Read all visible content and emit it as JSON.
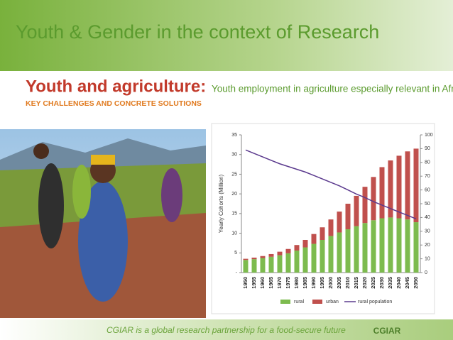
{
  "slide_title": "Youth & Gender in the context of Research",
  "cover": {
    "title": "Youth and agriculture:",
    "subtitle": "KEY CHALLENGES AND CONCRETE SOLUTIONS"
  },
  "description": "Youth employment in agriculture especially relevant in Africa south of the Sahara",
  "footer": {
    "tagline": "CGIAR is a global research partnership for a food-secure future",
    "logo": "CGIAR"
  },
  "chart_data": {
    "type": "bar",
    "stacked": true,
    "y_label": "Yearly Cohorts (Million)",
    "categories": [
      "1950",
      "1955",
      "1960",
      "1965",
      "1970",
      "1975",
      "1980",
      "1985",
      "1990",
      "1995",
      "2000",
      "2005",
      "2010",
      "2015",
      "2020",
      "2025",
      "2030",
      "2035",
      "2040",
      "2045",
      "2050"
    ],
    "series": [
      {
        "name": "rural",
        "color": "#7dbb4e",
        "values": [
          3.2,
          3.4,
          3.7,
          4.0,
          4.4,
          4.9,
          5.6,
          6.4,
          7.3,
          8.3,
          9.3,
          10.2,
          11.0,
          11.8,
          12.6,
          13.3,
          13.8,
          14.0,
          13.8,
          13.5,
          12.8
        ]
      },
      {
        "name": "urban",
        "color": "#c0504d",
        "values": [
          0.3,
          0.4,
          0.5,
          0.7,
          0.9,
          1.1,
          1.4,
          1.9,
          2.5,
          3.2,
          4.2,
          5.3,
          6.5,
          7.7,
          9.2,
          11.0,
          13.0,
          14.5,
          15.9,
          17.3,
          18.7
        ]
      },
      {
        "name": "rural population",
        "type": "line",
        "axis": "y2",
        "color": "#5b3a8e",
        "values": [
          89,
          86.5,
          84,
          81.5,
          79,
          77,
          75,
          73,
          70.5,
          68,
          65.5,
          63,
          60,
          57,
          54.5,
          51.5,
          49,
          46.5,
          44,
          41.5,
          39
        ]
      }
    ],
    "ylim": [
      0,
      35
    ],
    "yticks": [
      {
        "value": 0,
        "label": "-"
      },
      5,
      10,
      15,
      20,
      25,
      30,
      35
    ],
    "y2lim": [
      0,
      100
    ],
    "y2ticks": [
      0,
      10,
      20,
      30,
      40,
      50,
      60,
      70,
      80,
      90,
      100
    ],
    "legend": "bottom"
  }
}
